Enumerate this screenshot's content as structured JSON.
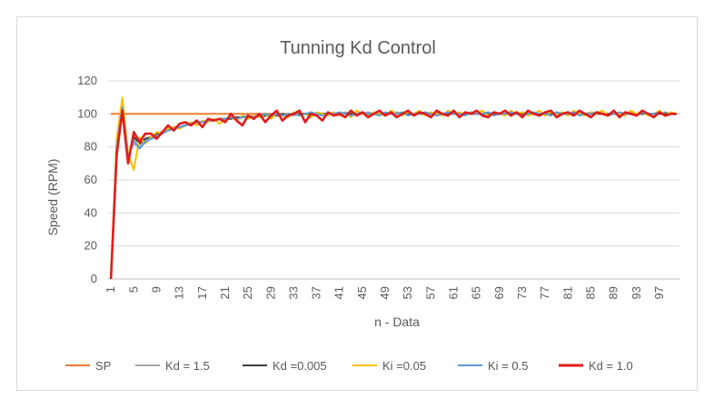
{
  "chart_data": {
    "type": "line",
    "title": "Tunning Kd Control",
    "xlabel": "n - Data",
    "ylabel": "Speed (RPM)",
    "ylim": [
      0,
      120
    ],
    "yticks": [
      0,
      20,
      40,
      60,
      80,
      100,
      120
    ],
    "xlim": [
      1,
      100
    ],
    "xticks": [
      1,
      5,
      9,
      13,
      17,
      21,
      25,
      29,
      33,
      37,
      41,
      45,
      49,
      53,
      57,
      61,
      65,
      69,
      73,
      77,
      81,
      85,
      89,
      93,
      97
    ],
    "grid": "horizontal",
    "legend_position": "bottom",
    "series": [
      {
        "name": "SP",
        "color": "#ED7D31",
        "values": [
          100,
          100,
          100,
          100,
          100,
          100,
          100,
          100,
          100,
          100,
          100,
          100,
          100,
          100,
          100,
          100,
          100,
          100,
          100,
          100,
          100,
          100,
          100,
          100,
          100,
          100,
          100,
          100,
          100,
          100,
          100,
          100,
          100,
          100,
          100,
          100,
          100,
          100,
          100,
          100,
          100,
          100,
          100,
          100,
          100,
          100,
          100,
          100,
          100,
          100,
          100,
          100,
          100,
          100,
          100,
          100,
          100,
          100,
          100,
          100,
          100,
          100,
          100,
          100,
          100,
          100,
          100,
          100,
          100,
          100,
          100,
          100,
          100,
          100,
          100,
          100,
          100,
          100,
          100,
          100,
          100,
          100,
          100,
          100,
          100,
          100,
          100,
          100,
          100,
          100,
          100,
          100,
          100,
          100,
          100,
          100,
          100,
          100,
          100,
          100
        ]
      },
      {
        "name": "Kd = 1.5",
        "color": "#A5A5A5",
        "values": [
          0,
          80,
          105,
          75,
          82,
          80,
          84,
          85,
          87,
          89,
          90,
          91,
          92,
          93,
          94,
          95,
          95,
          96,
          96,
          97,
          97,
          97,
          98,
          98,
          98,
          99,
          98,
          99,
          99,
          99,
          99,
          100,
          99,
          100,
          100,
          100,
          99,
          100,
          100,
          100,
          100,
          101,
          100,
          100,
          100,
          101,
          100,
          100,
          100,
          100,
          101,
          100,
          100,
          100,
          100,
          101,
          100,
          100,
          100,
          100,
          101,
          100,
          100,
          100,
          100,
          100,
          101,
          100,
          100,
          100,
          100,
          100,
          101,
          100,
          100,
          100,
          100,
          100,
          101,
          100,
          100,
          100,
          100,
          100,
          101,
          100,
          100,
          100,
          100,
          100,
          100,
          101,
          100,
          100,
          100,
          100,
          100,
          101,
          100,
          100
        ]
      },
      {
        "name": "Kd =0.005",
        "color": "#404040",
        "values": [
          0,
          78,
          103,
          72,
          86,
          82,
          85,
          86,
          88,
          89,
          90,
          92,
          92,
          93,
          94,
          95,
          95,
          96,
          96,
          97,
          97,
          97,
          98,
          98,
          98,
          98,
          99,
          99,
          99,
          99,
          100,
          99,
          100,
          100,
          100,
          100,
          100,
          100,
          100,
          100,
          100,
          100,
          100,
          100,
          100,
          100,
          100,
          100,
          100,
          100,
          100,
          100,
          100,
          100,
          100,
          100,
          100,
          100,
          100,
          100,
          100,
          100,
          100,
          100,
          100,
          100,
          100,
          100,
          100,
          100,
          100,
          100,
          100,
          100,
          100,
          100,
          100,
          100,
          100,
          100,
          100,
          100,
          100,
          100,
          100,
          100,
          100,
          100,
          100,
          100,
          100,
          100,
          100,
          100,
          100,
          100,
          100,
          100,
          100,
          100
        ]
      },
      {
        "name": "Ki =0.05",
        "color": "#FFC000",
        "values": [
          0,
          85,
          110,
          76,
          66,
          86,
          82,
          86,
          89,
          88,
          91,
          92,
          91,
          93,
          95,
          93,
          96,
          95,
          97,
          94,
          97,
          98,
          96,
          99,
          97,
          99,
          98,
          100,
          97,
          100,
          99,
          98,
          101,
          99,
          100,
          98,
          101,
          100,
          99,
          101,
          99,
          100,
          98,
          102,
          100,
          99,
          101,
          100,
          99,
          102,
          100,
          99,
          101,
          100,
          102,
          99,
          101,
          100,
          99,
          102,
          100,
          101,
          99,
          101,
          100,
          102,
          99,
          101,
          100,
          99,
          102,
          100,
          101,
          99,
          100,
          102,
          99,
          101,
          100,
          101,
          99,
          102,
          100,
          99,
          101,
          100,
          102,
          99,
          101,
          100,
          99,
          102,
          100,
          101,
          99,
          100,
          102,
          99,
          101,
          100
        ]
      },
      {
        "name": "Ki = 0.5",
        "color": "#5B9BD5",
        "values": [
          0,
          79,
          104,
          73,
          84,
          79,
          83,
          85,
          86,
          88,
          90,
          91,
          92,
          93,
          94,
          95,
          95,
          96,
          96,
          97,
          97,
          98,
          97,
          98,
          99,
          98,
          99,
          100,
          99,
          100,
          99,
          100,
          100,
          99,
          100,
          101,
          100,
          99,
          100,
          100,
          101,
          100,
          99,
          100,
          101,
          100,
          100,
          99,
          101,
          100,
          100,
          101,
          99,
          100,
          100,
          101,
          100,
          99,
          100,
          101,
          100,
          100,
          99,
          101,
          100,
          100,
          101,
          99,
          100,
          100,
          101,
          100,
          99,
          100,
          101,
          100,
          100,
          99,
          101,
          100,
          100,
          101,
          99,
          100,
          100,
          101,
          100,
          99,
          100,
          101,
          100,
          100,
          99,
          101,
          100,
          100,
          101,
          99,
          100,
          100
        ]
      },
      {
        "name": "Kd = 1.0",
        "color": "#E31B1B",
        "values": [
          0,
          75,
          102,
          70,
          89,
          83,
          88,
          88,
          85,
          89,
          93,
          90,
          94,
          95,
          93,
          96,
          92,
          97,
          96,
          97,
          95,
          100,
          96,
          93,
          99,
          97,
          100,
          95,
          99,
          102,
          96,
          99,
          100,
          102,
          95,
          100,
          99,
          96,
          101,
          99,
          100,
          98,
          102,
          99,
          101,
          98,
          100,
          102,
          99,
          101,
          98,
          100,
          102,
          99,
          101,
          100,
          98,
          102,
          100,
          99,
          102,
          98,
          101,
          100,
          102,
          99,
          98,
          101,
          100,
          102,
          99,
          101,
          98,
          102,
          100,
          99,
          101,
          102,
          98,
          100,
          101,
          99,
          102,
          100,
          98,
          101,
          100,
          99,
          102,
          98,
          101,
          100,
          99,
          102,
          100,
          98,
          101,
          99,
          100,
          100
        ]
      }
    ]
  }
}
